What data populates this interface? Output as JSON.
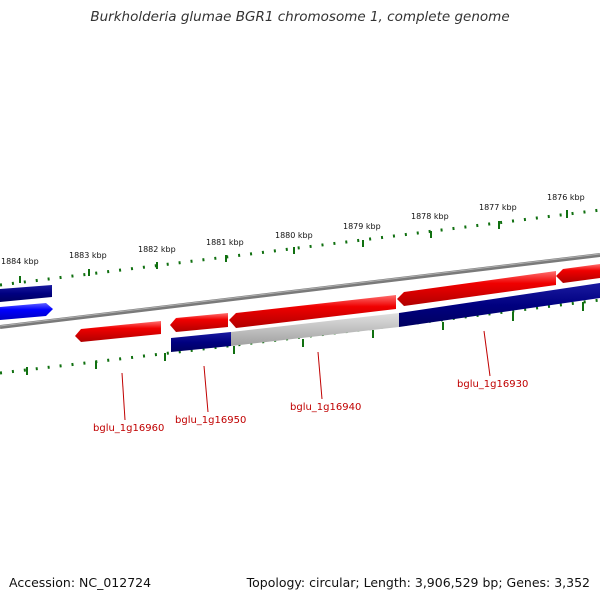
{
  "title": "Burkholderia glumae BGR1 chromosome 1, complete genome",
  "footer": {
    "accession": "Accession: NC_012724",
    "summary": "Topology: circular; Length: 3,906,529 bp; Genes: 3,352"
  },
  "scale_ticks": [
    "1884 kbp",
    "1883 kbp",
    "1882 kbp",
    "1881 kbp",
    "1880 kbp",
    "1879 kbp",
    "1878 kbp",
    "1877 kbp",
    "1876 kbp"
  ],
  "gene_labels": [
    "bglu_1g16960",
    "bglu_1g16950",
    "bglu_1g16940",
    "bglu_1g16930"
  ],
  "colors": {
    "forward_gene": "#e00000",
    "reverse_gene": "#000080",
    "highlight_gene": "#0000ff",
    "pseudo_gene": "#b8b8b8",
    "backbone": "#808080",
    "tick": "#107010",
    "label": "#c00000"
  }
}
